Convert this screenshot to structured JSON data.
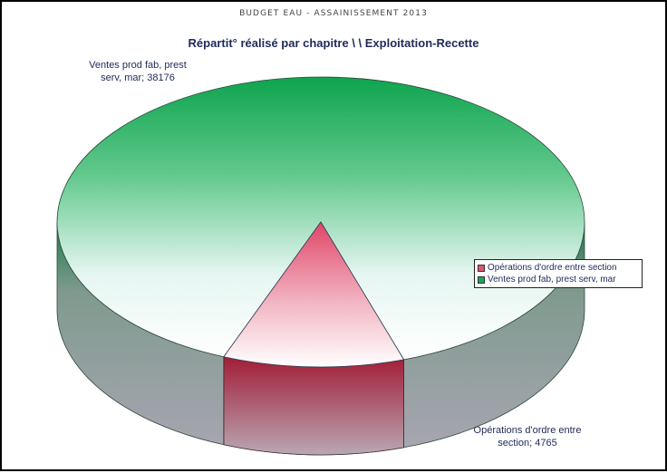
{
  "header": {
    "handwritten_note": "BUDGET EAU - ASSAINISSEMENT 2013"
  },
  "chart_data": {
    "type": "pie",
    "title": "Répartit° réalisé par chapitre \\ \\ Exploitation-Recette",
    "slices": [
      {
        "name": "Opérations d'ordre entre section",
        "value": 4765,
        "label_line1": "Opérations d'ordre entre",
        "label_line2": "section; 4765",
        "color": "#e0556f"
      },
      {
        "name": "Ventes prod fab, prest serv, mar",
        "value": 38176,
        "label_line1": "Ventes prod fab, prest",
        "label_line2": "serv, mar; 38176",
        "color": "#1aa858"
      }
    ],
    "legend": {
      "position": "right",
      "entries": [
        "Opérations d'ordre entre section",
        "Ventes prod fab, prest serv, mar"
      ]
    },
    "three_d": true
  }
}
